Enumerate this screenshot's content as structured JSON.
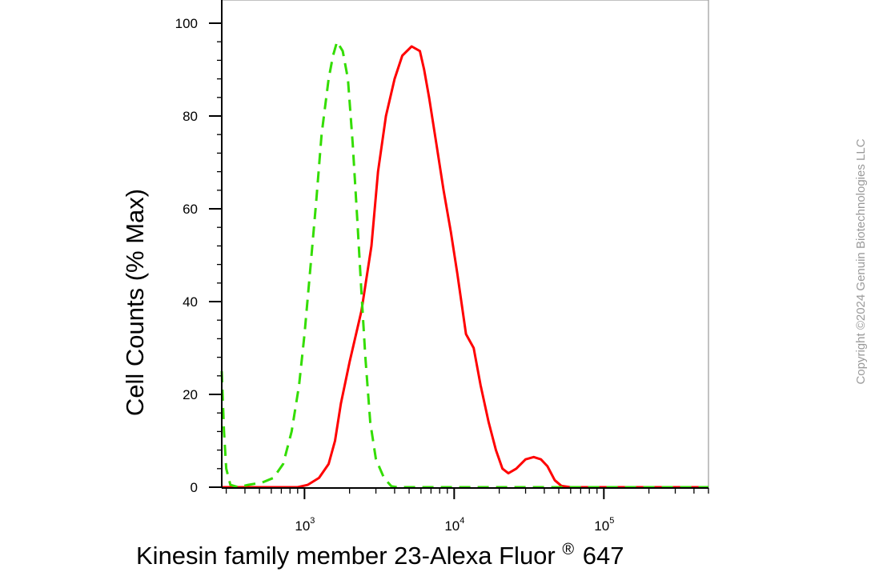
{
  "chart_data": {
    "type": "line",
    "title": "",
    "xlabel": "Kinesin family member 23-Alexa Fluor",
    "xlabel_sup": "®",
    "xlabel_tail": "647",
    "ylabel": "Cell Counts (% Max)",
    "xscale": "log",
    "xlim": [
      280,
      500000
    ],
    "ylim": [
      0,
      105
    ],
    "y_ticks": [
      0,
      20,
      40,
      60,
      80,
      100
    ],
    "x_ticks": [
      {
        "value": 1000,
        "base": "10",
        "exp": "3"
      },
      {
        "value": 10000,
        "base": "10",
        "exp": "4"
      },
      {
        "value": 100000,
        "base": "10",
        "exp": "5"
      }
    ],
    "grid": false,
    "series": [
      {
        "color": "#ff0000",
        "style": "solid",
        "points": [
          [
            280,
            0
          ],
          [
            900,
            0
          ],
          [
            1050,
            0.5
          ],
          [
            1250,
            2
          ],
          [
            1450,
            5
          ],
          [
            1600,
            10
          ],
          [
            1750,
            18
          ],
          [
            2000,
            27
          ],
          [
            2400,
            38
          ],
          [
            2800,
            52
          ],
          [
            3100,
            68
          ],
          [
            3500,
            80
          ],
          [
            4000,
            88
          ],
          [
            4500,
            93
          ],
          [
            5200,
            95
          ],
          [
            5900,
            94
          ],
          [
            6300,
            90
          ],
          [
            6800,
            84
          ],
          [
            7600,
            74
          ],
          [
            8500,
            64
          ],
          [
            9500,
            55
          ],
          [
            10500,
            46
          ],
          [
            12000,
            33
          ],
          [
            13500,
            30
          ],
          [
            15000,
            22
          ],
          [
            17000,
            14
          ],
          [
            19000,
            8
          ],
          [
            21000,
            4
          ],
          [
            23000,
            3
          ],
          [
            26000,
            4
          ],
          [
            30000,
            6
          ],
          [
            34000,
            6.5
          ],
          [
            38000,
            6
          ],
          [
            42000,
            4.5
          ],
          [
            47000,
            1.5
          ],
          [
            52000,
            0.3
          ],
          [
            60000,
            0
          ],
          [
            500000,
            0
          ]
        ]
      },
      {
        "color": "#33dd00",
        "style": "dashed",
        "points": [
          [
            280,
            25
          ],
          [
            290,
            12
          ],
          [
            300,
            4
          ],
          [
            320,
            0.5
          ],
          [
            360,
            0
          ],
          [
            420,
            0.5
          ],
          [
            520,
            1
          ],
          [
            620,
            2
          ],
          [
            720,
            5
          ],
          [
            820,
            12
          ],
          [
            920,
            22
          ],
          [
            1000,
            33
          ],
          [
            1100,
            48
          ],
          [
            1200,
            62
          ],
          [
            1300,
            76
          ],
          [
            1450,
            88
          ],
          [
            1550,
            93
          ],
          [
            1650,
            96
          ],
          [
            1800,
            94
          ],
          [
            1950,
            88
          ],
          [
            2100,
            74
          ],
          [
            2250,
            58
          ],
          [
            2400,
            42
          ],
          [
            2550,
            28
          ],
          [
            2750,
            14
          ],
          [
            3000,
            6
          ],
          [
            3400,
            2
          ],
          [
            3800,
            0.2
          ],
          [
            4200,
            0
          ],
          [
            500000,
            0
          ]
        ]
      }
    ]
  },
  "copyright": "Copyright ©2024 Genuin Biotechnologies LLC"
}
